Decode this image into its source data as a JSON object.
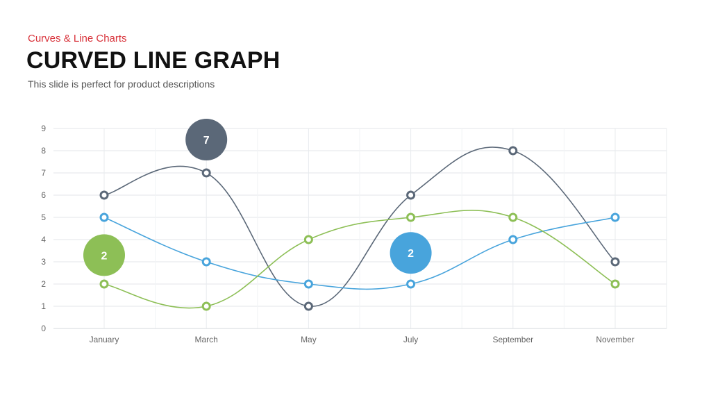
{
  "header": {
    "category": "Curves & Line Charts",
    "title": "CURVED LINE GRAPH",
    "subtitle": "This slide is perfect for product descriptions"
  },
  "chart_data": {
    "type": "line",
    "smooth": true,
    "categories": [
      "January",
      "March",
      "May",
      "July",
      "September",
      "November"
    ],
    "ylim": [
      0,
      9
    ],
    "yticks": [
      0,
      1,
      2,
      3,
      4,
      5,
      6,
      7,
      8,
      9
    ],
    "grid": true,
    "series": [
      {
        "color": "#5b6878",
        "values": [
          6,
          7,
          1,
          6,
          8,
          3
        ]
      },
      {
        "color": "#48a4dc",
        "values": [
          5,
          3,
          2,
          2,
          4,
          5
        ]
      },
      {
        "color": "#8dbf56",
        "values": [
          2,
          1,
          4,
          5,
          5,
          2
        ]
      }
    ],
    "callouts": [
      {
        "text": "7",
        "x": "March",
        "y": 8.5,
        "color": "#5b6878"
      },
      {
        "text": "2",
        "x": "January",
        "y": 3.3,
        "color": "#8dbf56"
      },
      {
        "text": "2",
        "x": "July",
        "y": 3.4,
        "color": "#48a4dc"
      }
    ]
  }
}
